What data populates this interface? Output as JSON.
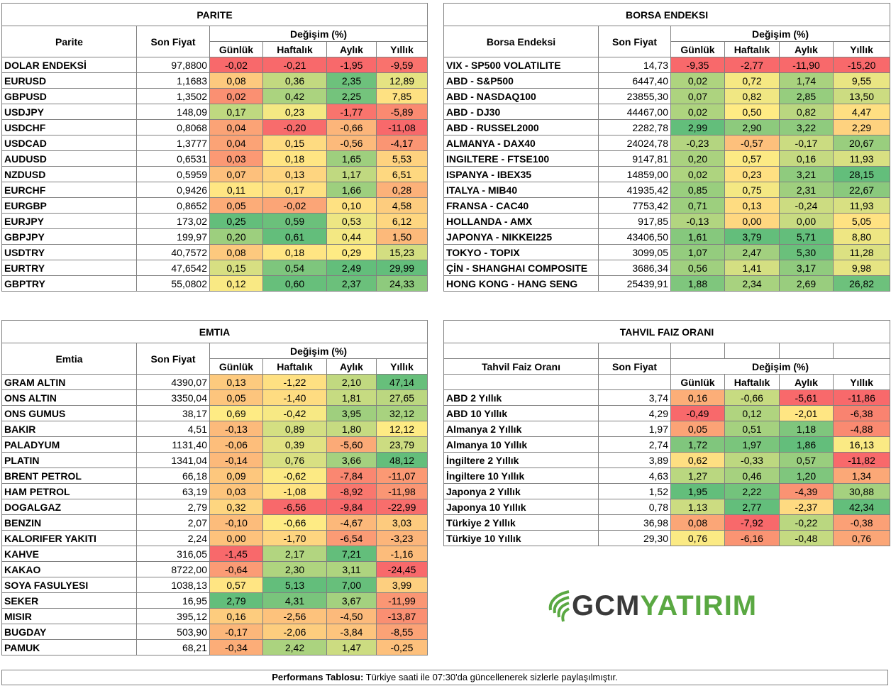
{
  "header_labels": {
    "last_price": "Son Fiyat",
    "change_pct": "Değişim (%)",
    "daily": "Günlük",
    "weekly": "Haftalık",
    "monthly": "Aylık",
    "yearly": "Yıllık"
  },
  "colors": {
    "green": "#63be7b",
    "yellow": "#ffeb84",
    "red": "#f8696b",
    "border": "#808080"
  },
  "parite": {
    "title": "PARITE",
    "name_header": "Parite",
    "rows": [
      {
        "name": "DOLAR ENDEKSİ",
        "price": "97,8800",
        "d": "-0,02",
        "w": "-0,21",
        "m": "-1,95",
        "y": "-9,59"
      },
      {
        "name": "EURUSD",
        "price": "1,1683",
        "d": "0,08",
        "w": "0,36",
        "m": "2,35",
        "y": "12,89"
      },
      {
        "name": "GBPUSD",
        "price": "1,3502",
        "d": "0,02",
        "w": "0,42",
        "m": "2,25",
        "y": "7,85"
      },
      {
        "name": "USDJPY",
        "price": "148,09",
        "d": "0,17",
        "w": "0,23",
        "m": "-1,77",
        "y": "-5,89"
      },
      {
        "name": "USDCHF",
        "price": "0,8068",
        "d": "0,04",
        "w": "-0,20",
        "m": "-0,66",
        "y": "-11,08"
      },
      {
        "name": "USDCAD",
        "price": "1,3777",
        "d": "0,04",
        "w": "0,15",
        "m": "-0,56",
        "y": "-4,17"
      },
      {
        "name": "AUDUSD",
        "price": "0,6531",
        "d": "0,03",
        "w": "0,18",
        "m": "1,65",
        "y": "5,53"
      },
      {
        "name": "NZDUSD",
        "price": "0,5959",
        "d": "0,07",
        "w": "0,13",
        "m": "1,17",
        "y": "6,51"
      },
      {
        "name": "EURCHF",
        "price": "0,9426",
        "d": "0,11",
        "w": "0,17",
        "m": "1,66",
        "y": "0,28"
      },
      {
        "name": "EURGBP",
        "price": "0,8652",
        "d": "0,05",
        "w": "-0,02",
        "m": "0,10",
        "y": "4,58"
      },
      {
        "name": "EURJPY",
        "price": "173,02",
        "d": "0,25",
        "w": "0,59",
        "m": "0,53",
        "y": "6,12"
      },
      {
        "name": "GBPJPY",
        "price": "199,97",
        "d": "0,20",
        "w": "0,61",
        "m": "0,44",
        "y": "1,50"
      },
      {
        "name": "USDTRY",
        "price": "40,7572",
        "d": "0,08",
        "w": "0,18",
        "m": "0,29",
        "y": "15,23"
      },
      {
        "name": "EURTRY",
        "price": "47,6542",
        "d": "0,15",
        "w": "0,54",
        "m": "2,49",
        "y": "29,99"
      },
      {
        "name": "GBPTRY",
        "price": "55,0802",
        "d": "0,12",
        "w": "0,60",
        "m": "2,37",
        "y": "24,33"
      }
    ]
  },
  "borsa": {
    "title": "BORSA ENDEKSI",
    "name_header": "Borsa Endeksi",
    "rows": [
      {
        "name": "VIX  - SP500 VOLATILITE",
        "price": "14,73",
        "d": "-9,35",
        "w": "-2,77",
        "m": "-11,90",
        "y": "-15,20"
      },
      {
        "name": "ABD - S&P500",
        "price": "6447,40",
        "d": "0,02",
        "w": "0,72",
        "m": "1,74",
        "y": "9,55"
      },
      {
        "name": "ABD - NASDAQ100",
        "price": "23855,30",
        "d": "0,07",
        "w": "0,82",
        "m": "2,85",
        "y": "13,50"
      },
      {
        "name": "ABD - DJ30",
        "price": "44467,00",
        "d": "0,02",
        "w": "0,50",
        "m": "0,82",
        "y": "4,47"
      },
      {
        "name": "ABD - RUSSEL2000",
        "price": "2282,78",
        "d": "2,99",
        "w": "2,90",
        "m": "3,22",
        "y": "2,29"
      },
      {
        "name": "ALMANYA - DAX40",
        "price": "24024,78",
        "d": "-0,23",
        "w": "-0,57",
        "m": "-0,17",
        "y": "20,67"
      },
      {
        "name": "INGILTERE - FTSE100",
        "price": "9147,81",
        "d": "0,20",
        "w": "0,57",
        "m": "0,16",
        "y": "11,93"
      },
      {
        "name": "ISPANYA - IBEX35",
        "price": "14859,00",
        "d": "0,02",
        "w": "0,23",
        "m": "3,21",
        "y": "28,15"
      },
      {
        "name": "ITALYA - MIB40",
        "price": "41935,42",
        "d": "0,85",
        "w": "0,75",
        "m": "2,31",
        "y": "22,67"
      },
      {
        "name": "FRANSA - CAC40",
        "price": "7753,42",
        "d": "0,71",
        "w": "0,13",
        "m": "-0,24",
        "y": "11,93"
      },
      {
        "name": "HOLLANDA - AMX",
        "price": "917,85",
        "d": "-0,13",
        "w": "0,00",
        "m": "0,00",
        "y": "5,05"
      },
      {
        "name": "JAPONYA - NIKKEI225",
        "price": "43406,50",
        "d": "1,61",
        "w": "3,79",
        "m": "5,71",
        "y": "8,80"
      },
      {
        "name": "TOKYO - TOPIX",
        "price": "3099,05",
        "d": "1,07",
        "w": "2,47",
        "m": "5,30",
        "y": "11,28"
      },
      {
        "name": "ÇİN - SHANGHAI COMPOSITE",
        "price": "3686,34",
        "d": "0,56",
        "w": "1,41",
        "m": "3,17",
        "y": "9,98"
      },
      {
        "name": "HONG KONG - HANG SENG",
        "price": "25439,91",
        "d": "1,88",
        "w": "2,34",
        "m": "2,69",
        "y": "26,82"
      }
    ]
  },
  "emtia": {
    "title": "EMTIA",
    "name_header": "Emtia",
    "rows": [
      {
        "name": "GRAM ALTIN",
        "price": "4390,07",
        "d": "0,13",
        "w": "-1,22",
        "m": "2,10",
        "y": "47,14"
      },
      {
        "name": "ONS ALTIN",
        "price": "3350,04",
        "d": "0,05",
        "w": "-1,40",
        "m": "1,81",
        "y": "27,65"
      },
      {
        "name": "ONS GUMUS",
        "price": "38,17",
        "d": "0,69",
        "w": "-0,42",
        "m": "3,95",
        "y": "32,12"
      },
      {
        "name": "BAKIR",
        "price": "4,51",
        "d": "-0,13",
        "w": "0,89",
        "m": "1,80",
        "y": "12,12"
      },
      {
        "name": "PALADYUM",
        "price": "1131,40",
        "d": "-0,06",
        "w": "0,39",
        "m": "-5,60",
        "y": "23,79"
      },
      {
        "name": "PLATIN",
        "price": "1341,04",
        "d": "-0,14",
        "w": "0,76",
        "m": "3,66",
        "y": "48,12"
      },
      {
        "name": "BRENT PETROL",
        "price": "66,18",
        "d": "0,09",
        "w": "-0,62",
        "m": "-7,84",
        "y": "-11,07"
      },
      {
        "name": "HAM PETROL",
        "price": "63,19",
        "d": "0,03",
        "w": "-1,08",
        "m": "-8,92",
        "y": "-11,98"
      },
      {
        "name": "DOGALGAZ",
        "price": "2,79",
        "d": "0,32",
        "w": "-6,56",
        "m": "-9,84",
        "y": "-22,99"
      },
      {
        "name": "BENZIN",
        "price": "2,07",
        "d": "-0,10",
        "w": "-0,66",
        "m": "-4,67",
        "y": "3,03"
      },
      {
        "name": "KALORIFER YAKITI",
        "price": "2,24",
        "d": "0,00",
        "w": "-1,70",
        "m": "-6,54",
        "y": "-3,23"
      },
      {
        "name": "KAHVE",
        "price": "316,05",
        "d": "-1,45",
        "w": "2,17",
        "m": "7,21",
        "y": "-1,16"
      },
      {
        "name": "KAKAO",
        "price": "8722,00",
        "d": "-0,64",
        "w": "2,30",
        "m": "3,11",
        "y": "-24,45"
      },
      {
        "name": "SOYA FASULYESI",
        "price": "1038,13",
        "d": "0,57",
        "w": "5,13",
        "m": "7,00",
        "y": "3,99"
      },
      {
        "name": "SEKER",
        "price": "16,95",
        "d": "2,79",
        "w": "4,31",
        "m": "3,67",
        "y": "-11,99"
      },
      {
        "name": "MISIR",
        "price": "395,12",
        "d": "0,16",
        "w": "-2,56",
        "m": "-4,50",
        "y": "-13,87"
      },
      {
        "name": "BUGDAY",
        "price": "503,90",
        "d": "-0,17",
        "w": "-2,06",
        "m": "-3,84",
        "y": "-8,55"
      },
      {
        "name": "PAMUK",
        "price": "68,21",
        "d": "-0,34",
        "w": "2,42",
        "m": "1,47",
        "y": "-0,25"
      }
    ]
  },
  "tahvil": {
    "title": "TAHVIL FAIZ ORANI",
    "name_header": "Tahvil Faiz Oranı",
    "rows": [
      {
        "name": "ABD 2 Yıllık",
        "price": "3,74",
        "d": "0,16",
        "w": "-0,66",
        "m": "-5,61",
        "y": "-11,86"
      },
      {
        "name": "ABD 10 Yıllık",
        "price": "4,29",
        "d": "-0,49",
        "w": "0,12",
        "m": "-2,01",
        "y": "-6,38"
      },
      {
        "name": "Almanya 2 Yıllık",
        "price": "1,97",
        "d": "0,05",
        "w": "0,51",
        "m": "1,18",
        "y": "-4,88"
      },
      {
        "name": "Almanya 10 Yıllık",
        "price": "2,74",
        "d": "1,72",
        "w": "1,97",
        "m": "1,86",
        "y": "16,13"
      },
      {
        "name": "İngiltere 2 Yıllık",
        "price": "3,89",
        "d": "0,62",
        "w": "-0,33",
        "m": "0,57",
        "y": "-11,82"
      },
      {
        "name": "İngiltere 10 Yıllık",
        "price": "4,63",
        "d": "1,27",
        "w": "0,46",
        "m": "1,20",
        "y": "1,34"
      },
      {
        "name": "Japonya 2 Yıllık",
        "price": "1,52",
        "d": "1,95",
        "w": "2,22",
        "m": "-4,39",
        "y": "30,88"
      },
      {
        "name": "Japonya 10 Yıllık",
        "price": "0,78",
        "d": "1,13",
        "w": "2,77",
        "m": "-2,37",
        "y": "42,34"
      },
      {
        "name": "Türkiye 2 Yıllık",
        "price": "36,98",
        "d": "0,08",
        "w": "-7,92",
        "m": "-0,22",
        "y": "-0,38"
      },
      {
        "name": "Türkiye 10 Yıllık",
        "price": "29,30",
        "d": "0,76",
        "w": "-6,16",
        "m": "-0,48",
        "y": "0,76"
      }
    ]
  },
  "logo": {
    "part1": "GCM",
    "part2": "YATIRIM"
  },
  "footer": {
    "label": "Performans Tablosu:",
    "text": " Türkiye saati ile 07:30'da güncellenerek sizlerle paylaşılmıştır."
  }
}
